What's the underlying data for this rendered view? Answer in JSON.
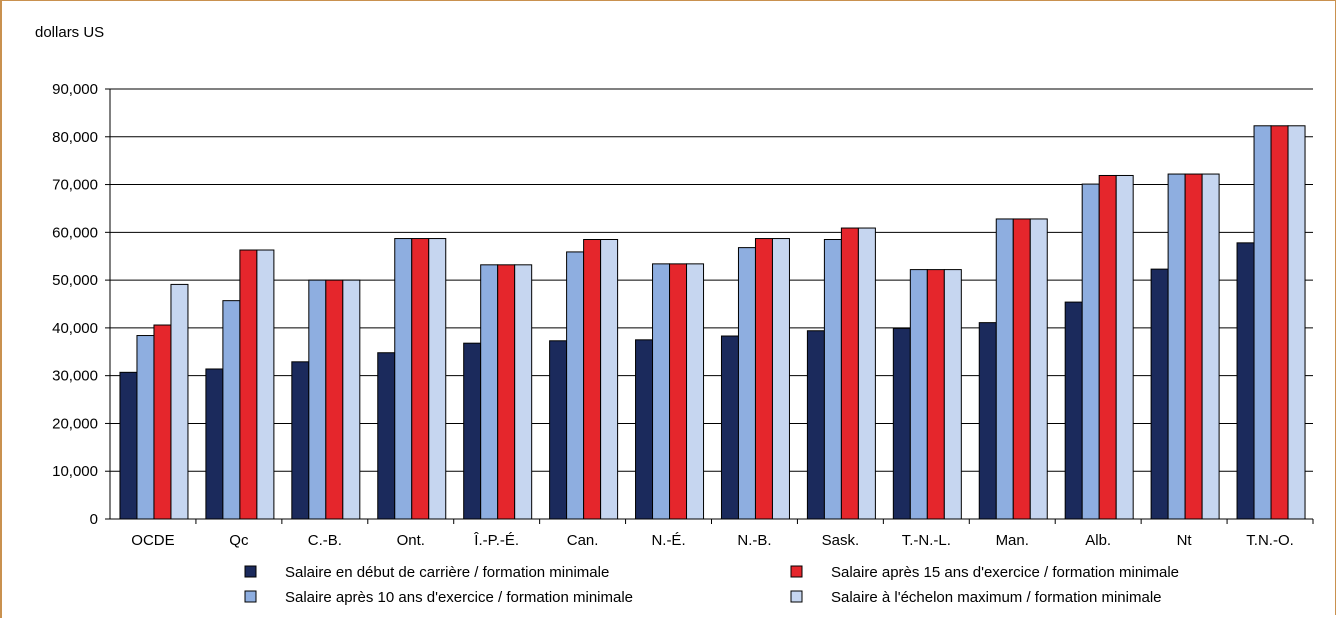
{
  "chart_data": {
    "type": "bar",
    "ylabel": "dollars US",
    "ylim": [
      0,
      90000
    ],
    "yticks": [
      0,
      10000,
      20000,
      30000,
      40000,
      50000,
      60000,
      70000,
      80000,
      90000
    ],
    "ytick_labels": [
      "0",
      "10,000",
      "20,000",
      "30,000",
      "40,000",
      "50,000",
      "60,000",
      "70,000",
      "80,000",
      "90,000"
    ],
    "grid": true,
    "legend_position": "bottom",
    "categories": [
      "OCDE",
      "Qc",
      "C.-B.",
      "Ont.",
      "Î.-P.-É.",
      "Can.",
      "N.-É.",
      "N.-B.",
      "Sask.",
      "T.-N.-L.",
      "Man.",
      "Alb.",
      "Nt",
      "T.N.-O."
    ],
    "series": [
      {
        "name": "Salaire en début de carrière / formation minimale",
        "color": "#1b2a5c",
        "values": [
          30700,
          31400,
          32900,
          34800,
          36800,
          37300,
          37500,
          38300,
          39400,
          39900,
          41100,
          45400,
          52300,
          57800
        ]
      },
      {
        "name": "Salaire après 10 ans d'exercice / formation minimale",
        "color": "#8eaee0",
        "values": [
          38400,
          45700,
          50000,
          58700,
          53200,
          55900,
          53400,
          56800,
          58500,
          52200,
          62800,
          70100,
          72200,
          82300
        ]
      },
      {
        "name": "Salaire après 15 ans d'exercice / formation minimale",
        "color": "#e5262c",
        "values": [
          40600,
          56300,
          50000,
          58700,
          53200,
          58500,
          53400,
          58700,
          60900,
          52200,
          62800,
          71900,
          72200,
          82300
        ]
      },
      {
        "name": "Salaire à l'échelon maximum / formation minimale",
        "color": "#c6d6f0",
        "values": [
          49100,
          56300,
          50000,
          58700,
          53200,
          58500,
          53400,
          58700,
          60900,
          52200,
          62800,
          71900,
          72200,
          82300
        ]
      }
    ]
  }
}
